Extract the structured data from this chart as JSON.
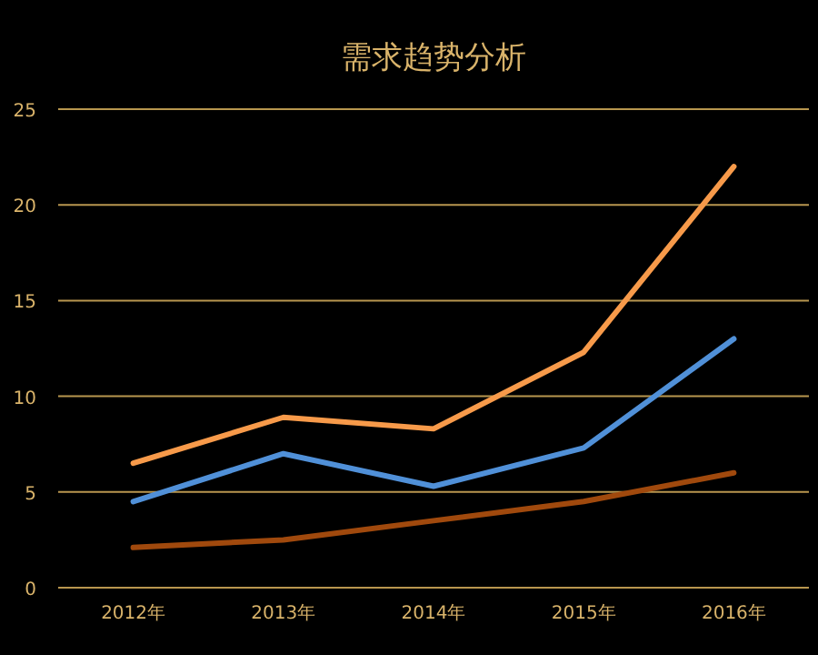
{
  "chart_data": {
    "type": "line",
    "title": "需求趋势分析",
    "categories": [
      "2012年",
      "2013年",
      "2014年",
      "2015年",
      "2016年"
    ],
    "series": [
      {
        "color": "#f79a4a",
        "values": [
          6.5,
          8.9,
          8.3,
          12.3,
          22
        ]
      },
      {
        "color": "#5090d8",
        "values": [
          4.5,
          7,
          5.3,
          7.3,
          13
        ]
      },
      {
        "color": "#a0490d",
        "values": [
          2.1,
          2.5,
          3.5,
          4.5,
          6
        ]
      }
    ],
    "ylim": [
      0,
      25
    ],
    "yticks": [
      0,
      5,
      10,
      15,
      20,
      25
    ],
    "grid": "y",
    "marker": "none",
    "line_style": "solid"
  }
}
